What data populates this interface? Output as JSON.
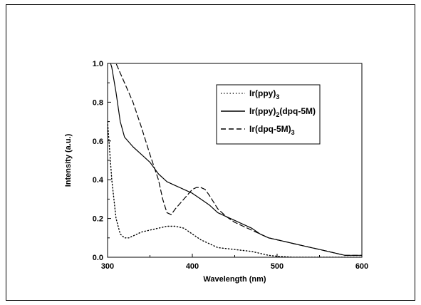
{
  "chart_data": {
    "type": "line",
    "title": "",
    "xlabel": "Wavelength (nm)",
    "ylabel": "Intensity (a.u.)",
    "xlim": [
      300,
      600
    ],
    "ylim": [
      0.0,
      1.0
    ],
    "xticks": [
      300,
      400,
      500,
      600
    ],
    "yticks": [
      0.0,
      0.2,
      0.4,
      0.6,
      0.8,
      1.0
    ],
    "xtick_labels": [
      "300",
      "400",
      "500",
      "600"
    ],
    "ytick_labels": [
      "0.0",
      "0.2",
      "0.4",
      "0.6",
      "0.8",
      "1.0"
    ],
    "legend_position": "top-right",
    "grid": false,
    "series": [
      {
        "name": "Ir(ppy)",
        "name_sub": "3",
        "style": "dotted",
        "x": [
          300,
          305,
          310,
          315,
          320,
          325,
          330,
          340,
          350,
          360,
          370,
          380,
          390,
          400,
          410,
          420,
          430,
          440,
          450,
          460,
          470,
          480,
          490,
          500,
          520,
          540,
          560,
          580,
          600
        ],
        "y": [
          0.7,
          0.4,
          0.2,
          0.12,
          0.1,
          0.1,
          0.11,
          0.13,
          0.14,
          0.15,
          0.16,
          0.16,
          0.15,
          0.12,
          0.09,
          0.07,
          0.05,
          0.045,
          0.04,
          0.035,
          0.03,
          0.02,
          0.01,
          0.005,
          0.0,
          0.0,
          0.0,
          0.0,
          0.0
        ]
      },
      {
        "name": "Ir(ppy)",
        "name_sub": "2",
        "name_suffix": "(dpq-5M)",
        "style": "solid",
        "x": [
          300,
          305,
          310,
          315,
          320,
          330,
          340,
          350,
          360,
          370,
          380,
          390,
          400,
          410,
          420,
          430,
          440,
          450,
          460,
          470,
          480,
          490,
          500,
          510,
          520,
          530,
          540,
          550,
          560,
          570,
          580,
          590,
          600
        ],
        "y": [
          1.05,
          0.98,
          0.85,
          0.7,
          0.62,
          0.57,
          0.53,
          0.49,
          0.43,
          0.39,
          0.37,
          0.35,
          0.33,
          0.3,
          0.27,
          0.23,
          0.21,
          0.19,
          0.17,
          0.15,
          0.12,
          0.1,
          0.09,
          0.08,
          0.07,
          0.06,
          0.05,
          0.04,
          0.03,
          0.02,
          0.01,
          0.01,
          0.01
        ]
      },
      {
        "name": "Ir(dpq-5M)",
        "name_sub": "3",
        "style": "dashed",
        "x": [
          300,
          310,
          320,
          330,
          340,
          350,
          360,
          365,
          370,
          375,
          380,
          390,
          400,
          405,
          410,
          415,
          420,
          430,
          440,
          450,
          460,
          470,
          480,
          490,
          500,
          510,
          520,
          530,
          540,
          550,
          560,
          570,
          580,
          590,
          600
        ],
        "y": [
          1.15,
          1.0,
          0.9,
          0.8,
          0.67,
          0.53,
          0.4,
          0.3,
          0.23,
          0.22,
          0.25,
          0.3,
          0.35,
          0.36,
          0.36,
          0.35,
          0.32,
          0.25,
          0.21,
          0.18,
          0.16,
          0.14,
          0.12,
          0.1,
          0.09,
          0.08,
          0.07,
          0.06,
          0.05,
          0.04,
          0.03,
          0.02,
          0.01,
          0.01,
          0.01
        ]
      }
    ]
  }
}
